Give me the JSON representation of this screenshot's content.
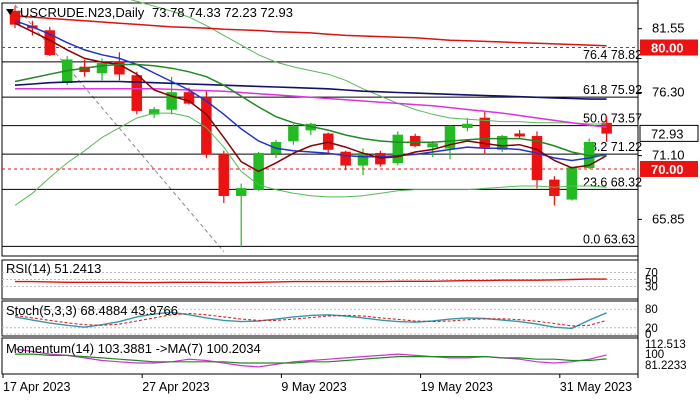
{
  "header": {
    "symbol": "USCRUDE.N23,Daily",
    "ohlc": "73.78 74.33 72.23 72.93"
  },
  "colors": {
    "bull": "#22bb22",
    "bear": "#ee1111",
    "ma_red": "#dd1111",
    "ma_magenta": "#dd33dd",
    "ma_navy": "#111166",
    "ma_blue": "#2233cc",
    "ma_maroon": "#880000",
    "ma_green": "#228822",
    "bollinger": "#55bb55",
    "fib": "#000000",
    "level_marker": "#ee1111",
    "stoch_main": "#3399aa",
    "stoch_signal": "#dd2222",
    "momentum": "#cc33cc",
    "momentum_ma": "#228822"
  },
  "chart_data": [
    {
      "type": "candlestick",
      "title": "USCRUDE.N23,Daily",
      "x_labels": [
        "17 Apr 2023",
        "27 Apr 2023",
        "9 May 2023",
        "19 May 2023",
        "31 May 2023"
      ],
      "x_label_index": [
        0,
        8,
        16,
        24,
        32
      ],
      "ylim": [
        63.0,
        83.5
      ],
      "y_ticks": [
        81.55,
        76.3,
        71.1,
        65.85
      ],
      "current_price": 72.93,
      "candles": [
        {
          "o": 83.0,
          "h": 83.4,
          "l": 81.6,
          "c": 81.9
        },
        {
          "o": 81.8,
          "h": 82.2,
          "l": 81.0,
          "c": 81.6
        },
        {
          "o": 81.4,
          "h": 81.7,
          "l": 79.3,
          "c": 79.4
        },
        {
          "o": 77.1,
          "h": 79.3,
          "l": 76.9,
          "c": 79.0
        },
        {
          "o": 78.4,
          "h": 79.0,
          "l": 77.6,
          "c": 78.0
        },
        {
          "o": 77.9,
          "h": 79.1,
          "l": 77.3,
          "c": 78.7
        },
        {
          "o": 78.8,
          "h": 79.6,
          "l": 77.3,
          "c": 77.8
        },
        {
          "o": 77.7,
          "h": 78.0,
          "l": 74.5,
          "c": 74.8
        },
        {
          "o": 74.5,
          "h": 75.1,
          "l": 74.2,
          "c": 74.9
        },
        {
          "o": 74.9,
          "h": 77.6,
          "l": 74.5,
          "c": 76.3
        },
        {
          "o": 76.3,
          "h": 76.7,
          "l": 75.3,
          "c": 75.4
        },
        {
          "o": 75.9,
          "h": 76.4,
          "l": 70.9,
          "c": 71.2
        },
        {
          "o": 71.2,
          "h": 71.5,
          "l": 67.2,
          "c": 67.8
        },
        {
          "o": 67.8,
          "h": 68.8,
          "l": 63.6,
          "c": 68.4
        },
        {
          "o": 68.3,
          "h": 71.4,
          "l": 68.2,
          "c": 71.3
        },
        {
          "o": 71.3,
          "h": 72.4,
          "l": 70.9,
          "c": 72.2
        },
        {
          "o": 72.3,
          "h": 73.7,
          "l": 72.0,
          "c": 73.5
        },
        {
          "o": 73.2,
          "h": 73.8,
          "l": 72.8,
          "c": 73.7
        },
        {
          "o": 72.9,
          "h": 73.0,
          "l": 71.3,
          "c": 71.6
        },
        {
          "o": 71.4,
          "h": 71.5,
          "l": 69.9,
          "c": 70.3
        },
        {
          "o": 70.3,
          "h": 71.7,
          "l": 69.5,
          "c": 71.3
        },
        {
          "o": 71.3,
          "h": 71.5,
          "l": 70.2,
          "c": 70.4
        },
        {
          "o": 70.5,
          "h": 73.1,
          "l": 70.3,
          "c": 72.8
        },
        {
          "o": 72.7,
          "h": 72.9,
          "l": 71.8,
          "c": 71.9
        },
        {
          "o": 71.8,
          "h": 72.3,
          "l": 71.0,
          "c": 72.1
        },
        {
          "o": 71.7,
          "h": 73.6,
          "l": 70.8,
          "c": 73.5
        },
        {
          "o": 73.4,
          "h": 74.2,
          "l": 73.1,
          "c": 73.7
        },
        {
          "o": 74.2,
          "h": 74.7,
          "l": 71.2,
          "c": 71.8
        },
        {
          "o": 71.6,
          "h": 72.8,
          "l": 71.4,
          "c": 72.7
        },
        {
          "o": 72.9,
          "h": 73.2,
          "l": 72.5,
          "c": 72.7
        },
        {
          "o": 72.7,
          "h": 73.1,
          "l": 68.4,
          "c": 69.1
        },
        {
          "o": 69.1,
          "h": 69.4,
          "l": 67.0,
          "c": 67.8
        },
        {
          "o": 67.5,
          "h": 70.2,
          "l": 67.4,
          "c": 70.1
        },
        {
          "o": 70.1,
          "h": 72.5,
          "l": 70.0,
          "c": 72.2
        },
        {
          "o": 73.78,
          "h": 74.33,
          "l": 72.23,
          "c": 72.93
        }
      ],
      "moving_averages": [
        {
          "color": "#dd1111",
          "values": [
            82.6,
            82.5,
            82.4,
            82.3,
            82.2,
            82.1,
            82.0,
            81.9,
            81.8,
            81.7,
            81.65,
            81.6,
            81.5,
            81.45,
            81.4,
            81.3,
            81.25,
            81.2,
            81.1,
            81.0,
            80.95,
            80.9,
            80.85,
            80.8,
            80.7,
            80.6,
            80.55,
            80.5,
            80.45,
            80.4,
            80.35,
            80.3,
            80.25,
            80.2,
            80.15
          ]
        },
        {
          "color": "#dd33dd",
          "values": [
            76.6,
            76.6,
            76.6,
            76.6,
            76.6,
            76.6,
            76.6,
            76.6,
            76.6,
            76.55,
            76.5,
            76.45,
            76.4,
            76.3,
            76.2,
            76.1,
            76.0,
            75.9,
            75.8,
            75.7,
            75.6,
            75.5,
            75.4,
            75.3,
            75.2,
            75.05,
            74.9,
            74.75,
            74.6,
            74.4,
            74.2,
            74.0,
            73.8,
            73.6,
            73.45
          ]
        },
        {
          "color": "#111166",
          "values": [
            76.9,
            77.0,
            77.1,
            77.15,
            77.2,
            77.2,
            77.2,
            77.15,
            77.1,
            77.05,
            77.0,
            76.95,
            76.9,
            76.85,
            76.8,
            76.75,
            76.7,
            76.65,
            76.6,
            76.5,
            76.4,
            76.35,
            76.3,
            76.25,
            76.2,
            76.15,
            76.1,
            76.05,
            76.0,
            75.95,
            75.9,
            75.85,
            75.8,
            75.75,
            75.75
          ]
        },
        {
          "color": "#2233cc",
          "values": [
            82.2,
            81.7,
            81.1,
            80.4,
            79.8,
            79.4,
            79.1,
            78.6,
            77.9,
            77.2,
            76.5,
            75.6,
            74.5,
            73.3,
            72.3,
            71.7,
            71.5,
            71.4,
            71.3,
            71.1,
            71.0,
            71.0,
            71.1,
            71.2,
            71.4,
            71.6,
            71.8,
            71.7,
            71.7,
            71.6,
            71.3,
            70.9,
            70.7,
            70.9,
            71.2
          ]
        },
        {
          "color": "#880000",
          "values": [
            82.0,
            81.3,
            80.6,
            79.8,
            79.1,
            78.8,
            78.6,
            77.8,
            76.5,
            76.0,
            75.6,
            74.5,
            72.6,
            70.6,
            69.8,
            70.5,
            71.3,
            71.9,
            72.2,
            71.8,
            71.3,
            70.9,
            71.0,
            71.4,
            71.6,
            72.0,
            72.3,
            72.1,
            71.9,
            72.0,
            71.6,
            70.7,
            70.1,
            70.3,
            71.1
          ]
        },
        {
          "color": "#228822",
          "values": [
            77.2,
            77.5,
            77.8,
            78.1,
            78.3,
            78.5,
            78.6,
            78.6,
            78.5,
            78.3,
            78.0,
            77.6,
            76.9,
            76.0,
            75.1,
            74.3,
            73.8,
            73.5,
            73.2,
            72.8,
            72.5,
            72.3,
            72.2,
            72.2,
            72.2,
            72.3,
            72.4,
            72.5,
            72.5,
            72.5,
            72.3,
            71.9,
            71.4,
            71.1,
            71.1
          ]
        }
      ],
      "bollinger": {
        "upper": [
          86.0,
          86.0,
          85.8,
          85.5,
          85.0,
          84.5,
          84.2,
          83.8,
          83.4,
          83.0,
          82.5,
          81.8,
          81.0,
          80.2,
          79.4,
          78.8,
          78.4,
          78.1,
          77.8,
          77.3,
          76.6,
          76.0,
          75.4,
          74.9,
          74.5,
          74.2,
          74.1,
          74.0,
          73.9,
          73.9,
          73.8,
          73.8,
          73.8,
          73.7,
          73.7
        ],
        "lower": [
          67.0,
          68.0,
          69.3,
          70.5,
          71.5,
          72.6,
          73.4,
          74.2,
          74.6,
          74.6,
          74.3,
          73.4,
          71.8,
          69.8,
          68.7,
          68.3,
          68.0,
          67.8,
          67.7,
          67.7,
          67.8,
          68.0,
          68.2,
          68.3,
          68.3,
          68.3,
          68.3,
          68.4,
          68.5,
          68.6,
          68.6,
          68.5,
          68.6,
          68.6,
          68.5
        ]
      },
      "fib_levels": [
        {
          "label": "76.4 78.82",
          "value": 78.82
        },
        {
          "label": "61.8 75.92",
          "value": 75.92
        },
        {
          "label": "50.0 73.57",
          "value": 73.57
        },
        {
          "label": "38.2 71.22",
          "value": 71.22
        },
        {
          "label": "23.6 68.32",
          "value": 68.32
        },
        {
          "label": "0.0 63.63",
          "value": 63.63
        }
      ],
      "marked_levels": [
        {
          "label": "80.00",
          "value": 80.0
        },
        {
          "label": "70.00",
          "value": 70.0
        }
      ],
      "trendline": {
        "from": {
          "index": 0,
          "value": 83.5
        },
        "to": {
          "index": 12,
          "value": 63.2
        }
      }
    },
    {
      "type": "line",
      "title": "RSI(14) 51.2413",
      "ylim": [
        0,
        100
      ],
      "y_ticks": [
        {
          "label": "70",
          "value": 70
        },
        {
          "label": "50",
          "value": 50
        },
        {
          "label": "30",
          "value": 30
        }
      ],
      "series": [
        {
          "color": "#dd1111",
          "values": [
            44,
            44,
            43,
            42,
            42,
            42,
            42,
            41,
            41,
            42,
            42,
            42,
            41,
            41,
            42,
            43,
            44,
            44,
            44,
            44,
            44,
            44,
            45,
            45,
            45,
            46,
            47,
            47,
            48,
            48,
            48,
            49,
            50,
            51,
            51.24
          ]
        }
      ]
    },
    {
      "type": "line",
      "title": "Stoch(5,3,3) 68.4884 43.9766",
      "ylim": [
        0,
        100
      ],
      "y_ticks": [
        {
          "label": "80",
          "value": 80
        },
        {
          "label": "20",
          "value": 20
        },
        {
          "label": "0",
          "value": 0
        }
      ],
      "series": [
        {
          "color": "#3399aa",
          "values": [
            55,
            45,
            35,
            28,
            22,
            30,
            40,
            55,
            65,
            70,
            62,
            52,
            44,
            40,
            42,
            48,
            55,
            60,
            62,
            58,
            52,
            45,
            40,
            38,
            42,
            48,
            52,
            50,
            45,
            40,
            32,
            22,
            18,
            45,
            68.49
          ]
        },
        {
          "color": "#dd2222",
          "values": [
            60,
            52,
            44,
            36,
            30,
            28,
            32,
            42,
            52,
            62,
            66,
            62,
            55,
            48,
            44,
            44,
            48,
            53,
            58,
            60,
            58,
            52,
            47,
            42,
            40,
            42,
            46,
            49,
            49,
            46,
            41,
            34,
            26,
            28,
            43.98
          ]
        }
      ]
    },
    {
      "type": "line",
      "title": "Momentum(14) 103.3881 ->MA(7) 100.2034",
      "ylim": [
        81.2233,
        112.513
      ],
      "y_ticks": [
        {
          "label": "112.513",
          "value": 112.513
        },
        {
          "label": "100",
          "value": 100
        },
        {
          "label": "81.2233",
          "value": 81.2233
        }
      ],
      "series": [
        {
          "color": "#cc33cc",
          "values": [
            108,
            106,
            104,
            103,
            101,
            99,
            98,
            97,
            97,
            98,
            100,
            99,
            97,
            95,
            94,
            96,
            98,
            99,
            100,
            101,
            102,
            103,
            104,
            103,
            102,
            101,
            101,
            102,
            101,
            100,
            98,
            97,
            98,
            100,
            103.39
          ]
        },
        {
          "color": "#228822",
          "values": [
            104,
            104,
            103,
            103,
            102,
            101,
            100,
            99,
            98,
            98,
            98,
            98,
            98,
            97,
            97,
            97,
            97,
            98,
            98,
            99,
            100,
            101,
            102,
            102,
            102,
            102,
            102,
            102,
            101,
            101,
            100,
            100,
            99,
            99,
            100.2
          ]
        }
      ]
    }
  ]
}
